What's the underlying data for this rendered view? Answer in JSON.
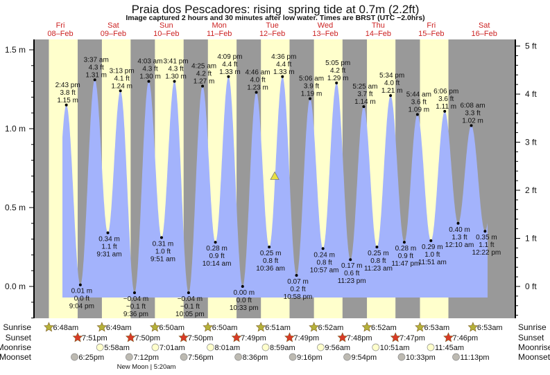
{
  "chart_data": {
    "type": "area",
    "title": "Praia dos Pescadores: rising  spring tide at 0.7m (2.2ft)",
    "subtitle": "Image captured 2 hours and 30 minutes after low water. Times are BRST (UTC −2.0hrs)",
    "days": [
      {
        "dow": "Fri",
        "date": "08–Feb"
      },
      {
        "dow": "Sat",
        "date": "09–Feb"
      },
      {
        "dow": "Sun",
        "date": "10–Feb"
      },
      {
        "dow": "Mon",
        "date": "11–Feb"
      },
      {
        "dow": "Tue",
        "date": "12–Feb"
      },
      {
        "dow": "Wed",
        "date": "13–Feb"
      },
      {
        "dow": "Thu",
        "date": "14–Feb"
      },
      {
        "dow": "Fri",
        "date": "15–Feb"
      },
      {
        "dow": "Sat",
        "date": "16–Feb"
      }
    ],
    "y_left": {
      "unit": "m",
      "ylim": [
        -0.25,
        1.6
      ],
      "tick_labels": [
        "1.5 m",
        "1.0 m",
        "0.5 m",
        "0.0 m"
      ],
      "ticks": [
        1.5,
        1.0,
        0.5,
        0.0
      ]
    },
    "y_right": {
      "unit": "ft",
      "tick_labels": [
        "5 ft",
        "4 ft",
        "3 ft",
        "2 ft",
        "1 ft",
        "0 ft"
      ],
      "ticks": [
        5,
        4,
        3,
        2,
        1,
        0
      ]
    },
    "current": {
      "day": 4,
      "time": "1:06 pm",
      "m": 0.7,
      "ft": 2.2,
      "state": "rising"
    },
    "extremes": [
      {
        "day": 0,
        "type": "high",
        "time": "2:43 pm",
        "m": "1.15",
        "ft": "3.8"
      },
      {
        "day": 0,
        "type": "low",
        "time": "9:04 pm",
        "m": "0.01",
        "ft": "0.0"
      },
      {
        "day": 1,
        "type": "high",
        "time": "3:37 am",
        "m": "1.31",
        "ft": "4.3"
      },
      {
        "day": 1,
        "type": "low",
        "time": "9:31 am",
        "m": "0.34",
        "ft": "1.1"
      },
      {
        "day": 1,
        "type": "high",
        "time": "3:13 pm",
        "m": "1.24",
        "ft": "4.1"
      },
      {
        "day": 1,
        "type": "low",
        "time": "9:36 pm",
        "m": "−0.04",
        "ft": "−0.1"
      },
      {
        "day": 2,
        "type": "high",
        "time": "4:03 am",
        "m": "1.30",
        "ft": "4.3"
      },
      {
        "day": 2,
        "type": "low",
        "time": "9:51 am",
        "m": "0.31",
        "ft": "1.0"
      },
      {
        "day": 2,
        "type": "high",
        "time": "3:41 pm",
        "m": "1.30",
        "ft": "4.3"
      },
      {
        "day": 2,
        "type": "low",
        "time": "10:05 pm",
        "m": "−0.04",
        "ft": "−0.1"
      },
      {
        "day": 3,
        "type": "high",
        "time": "4:25 am",
        "m": "1.27",
        "ft": "4.2"
      },
      {
        "day": 3,
        "type": "low",
        "time": "10:14 am",
        "m": "0.28",
        "ft": "0.9"
      },
      {
        "day": 3,
        "type": "high",
        "time": "4:09 pm",
        "m": "1.33",
        "ft": "4.4"
      },
      {
        "day": 3,
        "type": "low",
        "time": "10:33 pm",
        "m": "0.00",
        "ft": "0.0"
      },
      {
        "day": 4,
        "type": "high",
        "time": "4:46 am",
        "m": "1.23",
        "ft": "4.0"
      },
      {
        "day": 4,
        "type": "low",
        "time": "10:36 am",
        "m": "0.25",
        "ft": "0.8"
      },
      {
        "day": 4,
        "type": "high",
        "time": "4:36 pm",
        "m": "1.33",
        "ft": "4.4"
      },
      {
        "day": 4,
        "type": "low",
        "time": "10:58 pm",
        "m": "0.07",
        "ft": "0.2"
      },
      {
        "day": 5,
        "type": "high",
        "time": "5:06 am",
        "m": "1.19",
        "ft": "3.9"
      },
      {
        "day": 5,
        "type": "low",
        "time": "10:57 am",
        "m": "0.24",
        "ft": "0.8"
      },
      {
        "day": 5,
        "type": "high",
        "time": "5:05 pm",
        "m": "1.29",
        "ft": "4.2"
      },
      {
        "day": 5,
        "type": "low",
        "time": "11:23 pm",
        "m": "0.17",
        "ft": "0.6"
      },
      {
        "day": 6,
        "type": "high",
        "time": "5:25 am",
        "m": "1.14",
        "ft": "3.7"
      },
      {
        "day": 6,
        "type": "low",
        "time": "11:23 am",
        "m": "0.25",
        "ft": "0.8"
      },
      {
        "day": 6,
        "type": "high",
        "time": "5:34 pm",
        "m": "1.21",
        "ft": "4.0"
      },
      {
        "day": 6,
        "type": "low",
        "time": "11:47 pm",
        "m": "0.28",
        "ft": "0.9"
      },
      {
        "day": 7,
        "type": "high",
        "time": "5:44 am",
        "m": "1.09",
        "ft": "3.6"
      },
      {
        "day": 7,
        "type": "low",
        "time": "11:51 am",
        "m": "0.29",
        "ft": "1.0"
      },
      {
        "day": 7,
        "type": "high",
        "time": "6:06 pm",
        "m": "1.11",
        "ft": "3.6"
      },
      {
        "day": 8,
        "type": "low",
        "time": "12:10 am",
        "m": "0.40",
        "ft": "1.3"
      },
      {
        "day": 8,
        "type": "high",
        "time": "6:08 am",
        "m": "1.02",
        "ft": "3.3"
      },
      {
        "day": 8,
        "type": "low",
        "time": "12:22 pm",
        "m": "0.35",
        "ft": "1.1"
      }
    ],
    "astro": {
      "labels": {
        "sunrise": "Sunrise",
        "sunset": "Sunset",
        "moonrise": "Moonrise",
        "moonset": "Moonset"
      },
      "sunrise": [
        {
          "day": 0,
          "time": "6:48am"
        },
        {
          "day": 1,
          "time": "6:49am"
        },
        {
          "day": 2,
          "time": "6:50am"
        },
        {
          "day": 3,
          "time": "6:50am"
        },
        {
          "day": 4,
          "time": "6:51am"
        },
        {
          "day": 5,
          "time": "6:52am"
        },
        {
          "day": 6,
          "time": "6:52am"
        },
        {
          "day": 7,
          "time": "6:53am"
        },
        {
          "day": 8,
          "time": "6:53am"
        }
      ],
      "sunset": [
        {
          "day": 0,
          "time": "7:51pm"
        },
        {
          "day": 1,
          "time": "7:50pm"
        },
        {
          "day": 2,
          "time": "7:50pm"
        },
        {
          "day": 3,
          "time": "7:49pm"
        },
        {
          "day": 4,
          "time": "7:49pm"
        },
        {
          "day": 5,
          "time": "7:48pm"
        },
        {
          "day": 6,
          "time": "7:47pm"
        },
        {
          "day": 7,
          "time": "7:46pm"
        }
      ],
      "moonrise": [
        {
          "day": 1,
          "time": "5:58am"
        },
        {
          "day": 2,
          "time": "7:01am"
        },
        {
          "day": 3,
          "time": "8:01am"
        },
        {
          "day": 4,
          "time": "8:59am"
        },
        {
          "day": 5,
          "time": "9:56am"
        },
        {
          "day": 6,
          "time": "10:51am"
        },
        {
          "day": 7,
          "time": "11:45am"
        }
      ],
      "moonset": [
        {
          "day": 0,
          "time": "6:25pm"
        },
        {
          "day": 1,
          "time": "7:12pm"
        },
        {
          "day": 2,
          "time": "7:56pm"
        },
        {
          "day": 3,
          "time": "8:36pm"
        },
        {
          "day": 4,
          "time": "9:16pm"
        },
        {
          "day": 5,
          "time": "9:54pm"
        },
        {
          "day": 6,
          "time": "10:33pm"
        },
        {
          "day": 7,
          "time": "11:13pm"
        }
      ],
      "moon_phase": "New Moon | 5:20am"
    },
    "colors": {
      "day": "#ffffcc",
      "night": "#999999",
      "water": "#a3b3fc",
      "day_label": "#cc2222",
      "sunrise_star": "#b5b13a",
      "sunset_star": "#d93a26",
      "moonrise": "#ffffcc",
      "moonset": "#bdbab2",
      "marker": "#e8e040"
    }
  }
}
